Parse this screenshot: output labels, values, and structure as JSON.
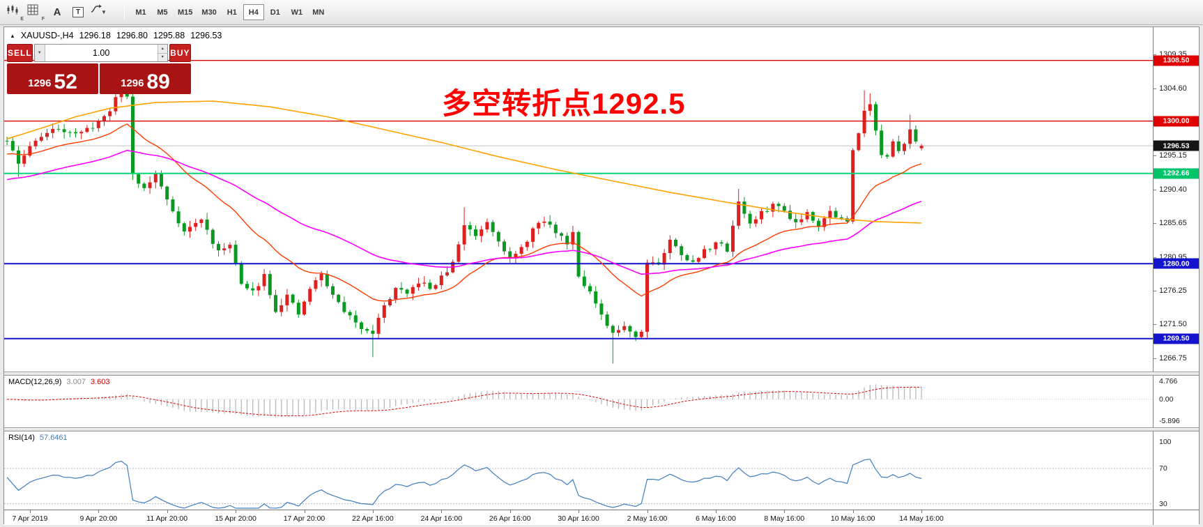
{
  "toolbar": {
    "tools": [
      {
        "name": "chart-window-icon"
      },
      {
        "name": "grid-tool-icon"
      },
      {
        "name": "text-label-tool-icon"
      },
      {
        "name": "text-box-tool-icon"
      },
      {
        "name": "line-style-dropdown-icon"
      }
    ],
    "timeframes": [
      "M1",
      "M5",
      "M15",
      "M30",
      "H1",
      "H4",
      "D1",
      "W1",
      "MN"
    ],
    "active_timeframe": "H4"
  },
  "chart_header": {
    "symbol": "XAUUSD-,H4",
    "open": "1296.18",
    "high": "1296.80",
    "low": "1295.88",
    "close": "1296.53"
  },
  "trade_panel": {
    "sell_label": "SELL",
    "buy_label": "BUY",
    "volume": "1.00",
    "sell_price": {
      "base": "1296",
      "pips": "52"
    },
    "buy_price": {
      "base": "1296",
      "pips": "89"
    }
  },
  "annotation": {
    "text": "多空转折点1292.5",
    "color": "#ff0000"
  },
  "colors": {
    "up": "#dd2020",
    "down": "#0a9a22",
    "ma_fast": "#ff3c00",
    "ma_mid": "#ff00ff",
    "ma_slow": "#ffa200",
    "hline_red": "#e00000",
    "hline_green": "#00d878",
    "hline_blue": "#1414cc",
    "bid_line": "#c0c0c0",
    "macd_hist": "#b8b8b8",
    "macd_signal": "#dd0000",
    "rsi_line": "#3e7ec0"
  },
  "price_scale": {
    "ticks": [
      "1309.35",
      "1304.60",
      "1295.15",
      "1290.40",
      "1285.65",
      "1280.95",
      "1276.25",
      "1271.50",
      "1266.75"
    ],
    "badges": [
      {
        "value": "1308.50",
        "bg": "#e00000"
      },
      {
        "value": "1300.00",
        "bg": "#e00000"
      },
      {
        "value": "1296.53",
        "bg": "#141414"
      },
      {
        "value": "1292.66",
        "bg": "#00c46a"
      },
      {
        "value": "1280.00",
        "bg": "#1414cc"
      },
      {
        "value": "1269.50",
        "bg": "#1414cc"
      }
    ]
  },
  "chart_data": {
    "type": "candlestick",
    "title": "XAUUSD- H4",
    "ylim": [
      1264.88,
      1313.16
    ],
    "candle_count": 161,
    "bid_price": 1296.53,
    "ohlc_last": {
      "open": 1296.18,
      "high": 1296.8,
      "low": 1295.88,
      "close": 1296.53
    },
    "hlines": [
      {
        "price": 1308.5,
        "color_key": "hline_red",
        "w": 1.4
      },
      {
        "price": 1300.0,
        "color_key": "hline_red",
        "w": 1.4
      },
      {
        "price": 1292.66,
        "color_key": "hline_green",
        "w": 2
      },
      {
        "price": 1280.0,
        "color_key": "hline_blue",
        "w": 2
      },
      {
        "price": 1269.5,
        "color_key": "hline_blue",
        "w": 2
      }
    ],
    "close_waypoints": [
      [
        0,
        1297.2
      ],
      [
        2,
        1294.0
      ],
      [
        5,
        1297.5
      ],
      [
        9,
        1299.0
      ],
      [
        13,
        1298.2
      ],
      [
        17,
        1300.5
      ],
      [
        20,
        1304.2
      ],
      [
        21,
        1303.5
      ],
      [
        22,
        1292.5
      ],
      [
        24,
        1290.5
      ],
      [
        26,
        1292.5
      ],
      [
        28,
        1289.0
      ],
      [
        31,
        1284.5
      ],
      [
        34,
        1286.2
      ],
      [
        37,
        1281.5
      ],
      [
        39,
        1283.0
      ],
      [
        41,
        1277.0
      ],
      [
        43,
        1276.0
      ],
      [
        45,
        1278.5
      ],
      [
        47,
        1273.5
      ],
      [
        49,
        1275.5
      ],
      [
        51,
        1272.8
      ],
      [
        53,
        1276.5
      ],
      [
        55,
        1278.5
      ],
      [
        57,
        1275.5
      ],
      [
        59,
        1273.5
      ],
      [
        61,
        1271.5
      ],
      [
        64,
        1270.5
      ],
      [
        66,
        1274.0
      ],
      [
        68,
        1276.5
      ],
      [
        70,
        1275.5
      ],
      [
        72,
        1277.5
      ],
      [
        74,
        1276.5
      ],
      [
        76,
        1278.0
      ],
      [
        78,
        1280.0
      ],
      [
        80,
        1285.5
      ],
      [
        82,
        1284.0
      ],
      [
        84,
        1286.0
      ],
      [
        86,
        1283.5
      ],
      [
        88,
        1280.5
      ],
      [
        90,
        1282.0
      ],
      [
        92,
        1284.8
      ],
      [
        94,
        1286.0
      ],
      [
        96,
        1284.5
      ],
      [
        98,
        1283.0
      ],
      [
        99,
        1284.5
      ],
      [
        100,
        1278.5
      ],
      [
        102,
        1276.0
      ],
      [
        104,
        1272.5
      ],
      [
        106,
        1270.0
      ],
      [
        108,
        1271.5
      ],
      [
        110,
        1269.8
      ],
      [
        111,
        1270.5
      ],
      [
        112,
        1280.5
      ],
      [
        114,
        1280.0
      ],
      [
        116,
        1283.2
      ],
      [
        118,
        1281.5
      ],
      [
        120,
        1280.0
      ],
      [
        122,
        1281.8
      ],
      [
        124,
        1283.0
      ],
      [
        126,
        1282.0
      ],
      [
        128,
        1288.8
      ],
      [
        130,
        1285.5
      ],
      [
        132,
        1287.0
      ],
      [
        134,
        1288.3
      ],
      [
        136,
        1287.5
      ],
      [
        138,
        1285.8
      ],
      [
        140,
        1287.2
      ],
      [
        142,
        1285.5
      ],
      [
        144,
        1287.3
      ],
      [
        146,
        1286.2
      ],
      [
        147,
        1285.8
      ],
      [
        148,
        1295.8
      ],
      [
        149,
        1298.5
      ],
      [
        150,
        1301.8
      ],
      [
        151,
        1302.5
      ],
      [
        152,
        1298.5
      ],
      [
        153,
        1295.3
      ],
      [
        154,
        1294.8
      ],
      [
        155,
        1296.8
      ],
      [
        156,
        1295.5
      ],
      [
        157,
        1297.2
      ],
      [
        158,
        1299.2
      ],
      [
        159,
        1297.0
      ],
      [
        160,
        1296.5
      ]
    ],
    "spike_highs": [
      [
        20,
        1305.4
      ],
      [
        80,
        1287.9
      ],
      [
        128,
        1290.5
      ],
      [
        150,
        1304.3
      ],
      [
        151,
        1303.9
      ],
      [
        158,
        1300.9
      ]
    ],
    "spike_lows": [
      [
        2,
        1292.2
      ],
      [
        64,
        1266.9
      ],
      [
        106,
        1266.0
      ]
    ],
    "moving_averages": [
      {
        "name": "ema-fast",
        "type": "ema",
        "period": 21,
        "init": 1295.2,
        "color_key": "ma_fast",
        "width": 1.4
      },
      {
        "name": "ema-mid",
        "type": "ema",
        "period": 55,
        "init": 1291.6,
        "color_key": "ma_mid",
        "width": 1.6
      },
      {
        "name": "ma-slow",
        "type": "waypoints",
        "color_key": "ma_slow",
        "width": 1.6,
        "points": [
          [
            0,
            1297.5
          ],
          [
            6,
            1299.0
          ],
          [
            12,
            1300.6
          ],
          [
            18,
            1301.8
          ],
          [
            26,
            1302.6
          ],
          [
            36,
            1302.8
          ],
          [
            46,
            1302.0
          ],
          [
            56,
            1300.6
          ],
          [
            66,
            1298.8
          ],
          [
            76,
            1297.0
          ],
          [
            86,
            1295.0
          ],
          [
            96,
            1293.2
          ],
          [
            106,
            1291.6
          ],
          [
            116,
            1290.0
          ],
          [
            126,
            1288.6
          ],
          [
            136,
            1287.3
          ],
          [
            144,
            1286.4
          ],
          [
            152,
            1285.9
          ],
          [
            160,
            1285.7
          ]
        ]
      }
    ],
    "indicators": [
      {
        "id": "macd",
        "label": "MACD(12,26,9)",
        "value_main": "3.007",
        "value_signal": "3.603",
        "scale_labels": [
          {
            "text": "4.766",
            "v": 4.766
          },
          {
            "text": "0.00",
            "v": 0
          },
          {
            "text": "-5.896",
            "v": -5.896
          }
        ],
        "vmax": 5.6,
        "vmin": -6.8
      },
      {
        "id": "rsi",
        "label": "RSI(14)",
        "value": "57.6461",
        "scale_labels": [
          {
            "text": "100",
            "v": 100
          },
          {
            "text": "70",
            "v": 70
          },
          {
            "text": "30",
            "v": 30
          }
        ],
        "levels": [
          70,
          30
        ]
      }
    ],
    "x_labels": [
      {
        "label": "7 Apr 2019",
        "i": 4
      },
      {
        "label": "9 Apr 20:00",
        "i": 16
      },
      {
        "label": "11 Apr 20:00",
        "i": 28
      },
      {
        "label": "15 Apr 20:00",
        "i": 40
      },
      {
        "label": "17 Apr 20:00",
        "i": 52
      },
      {
        "label": "22 Apr 16:00",
        "i": 64
      },
      {
        "label": "24 Apr 16:00",
        "i": 76
      },
      {
        "label": "26 Apr 16:00",
        "i": 88
      },
      {
        "label": "30 Apr 16:00",
        "i": 100
      },
      {
        "label": "2 May 16:00",
        "i": 112
      },
      {
        "label": "6 May 16:00",
        "i": 124
      },
      {
        "label": "8 May 16:00",
        "i": 136
      },
      {
        "label": "10 May 16:00",
        "i": 148
      },
      {
        "label": "14 May 16:00",
        "i": 160
      }
    ]
  }
}
